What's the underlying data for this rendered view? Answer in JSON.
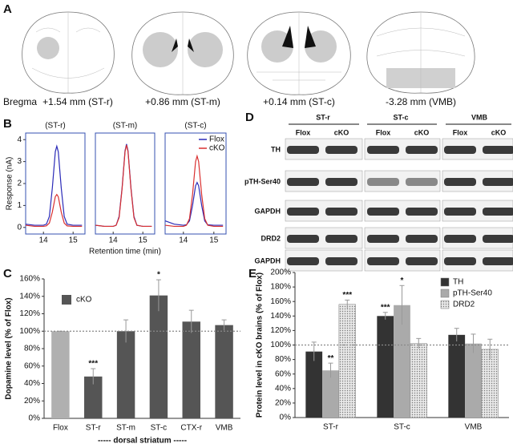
{
  "panel_labels": [
    "A",
    "B",
    "C",
    "D",
    "E"
  ],
  "panel_a": {
    "prefix": "Bregma",
    "sections": [
      "+1.54 mm (ST-r)",
      "+0.86 mm (ST-m)",
      "+0.14 mm (ST-c)",
      "-3.28 mm (VMB)"
    ]
  },
  "panel_d": {
    "groups": [
      "ST-r",
      "ST-c",
      "VMB"
    ],
    "lanes": [
      "Flox",
      "cKO",
      "Flox",
      "cKO",
      "Flox",
      "cKO"
    ],
    "rows": [
      "TH",
      "pTH-Ser40",
      "GAPDH",
      "DRD2",
      "GAPDH"
    ]
  },
  "chart_data": [
    {
      "type": "line",
      "title": "(ST-r)",
      "ylabel": "Response (nA)",
      "xlim": [
        13.4,
        15.4
      ],
      "ylim": [
        -0.3,
        4.3
      ],
      "xticks": [
        14,
        15
      ],
      "yticks": [
        0,
        1,
        2,
        3,
        4
      ],
      "x": [
        13.4,
        13.7,
        14.0,
        14.1,
        14.2,
        14.3,
        14.4,
        14.45,
        14.5,
        14.6,
        14.7,
        14.8,
        15.0,
        15.3
      ],
      "series": [
        {
          "name": "Flox",
          "color": "#2b2bb8",
          "values": [
            0.15,
            0.1,
            0.1,
            0.15,
            0.5,
            1.8,
            3.45,
            3.7,
            3.45,
            1.8,
            0.5,
            0.15,
            0.1,
            0.1
          ]
        },
        {
          "name": "cKO",
          "color": "#d93030",
          "values": [
            0.1,
            0.05,
            0.05,
            0.07,
            0.2,
            0.7,
            1.4,
            1.5,
            1.4,
            0.7,
            0.2,
            0.07,
            0.05,
            0.05
          ]
        }
      ]
    },
    {
      "type": "line",
      "title": "(ST-m)",
      "xlabel": "Retention time (min)",
      "xlim": [
        13.4,
        15.4
      ],
      "ylim": [
        -0.3,
        4.3
      ],
      "xticks": [
        14,
        15
      ],
      "x": [
        13.4,
        13.7,
        14.0,
        14.1,
        14.2,
        14.3,
        14.4,
        14.45,
        14.5,
        14.6,
        14.7,
        14.8,
        15.0,
        15.3
      ],
      "series": [
        {
          "name": "Flox",
          "color": "#2b2bb8",
          "values": [
            0.1,
            0.05,
            0.05,
            0.1,
            0.5,
            1.8,
            3.5,
            3.8,
            3.5,
            1.8,
            0.5,
            0.1,
            0.05,
            0.05
          ]
        },
        {
          "name": "cKO",
          "color": "#d93030",
          "values": [
            0.1,
            0.05,
            0.05,
            0.1,
            0.45,
            1.75,
            3.45,
            3.75,
            3.45,
            1.75,
            0.45,
            0.1,
            0.05,
            0.05
          ]
        }
      ]
    },
    {
      "type": "line",
      "title": "(ST-c)",
      "legend": "upper right",
      "xlim": [
        13.4,
        15.4
      ],
      "ylim": [
        -0.3,
        4.3
      ],
      "xticks": [
        14,
        15
      ],
      "x": [
        13.4,
        13.7,
        14.0,
        14.1,
        14.2,
        14.3,
        14.4,
        14.45,
        14.5,
        14.6,
        14.7,
        14.8,
        15.0,
        15.3
      ],
      "series": [
        {
          "name": "Flox",
          "color": "#2b2bb8",
          "values": [
            0.3,
            0.15,
            0.1,
            0.12,
            0.3,
            1.0,
            1.9,
            2.05,
            1.9,
            1.0,
            0.3,
            0.12,
            0.1,
            0.1
          ]
        },
        {
          "name": "cKO",
          "color": "#d93030",
          "values": [
            0.1,
            0.05,
            0.05,
            0.1,
            0.4,
            1.5,
            3.0,
            3.25,
            3.0,
            1.5,
            0.4,
            0.1,
            0.05,
            0.05
          ]
        }
      ]
    },
    {
      "type": "bar",
      "ylabel": "Dopamine level (% of Flox)",
      "xlabel": "----- dorsal striatum -----",
      "refline": 100,
      "categories": [
        "Flox",
        "ST-r",
        "ST-m",
        "ST-c",
        "CTX-r",
        "VMB"
      ],
      "ylim": [
        0,
        160
      ],
      "yticks": [
        {
          "value": 0,
          "label": "0%"
        },
        {
          "value": 20,
          "label": "20%"
        },
        {
          "value": 40,
          "label": "40%"
        },
        {
          "value": 60,
          "label": "60%"
        },
        {
          "value": 80,
          "label": "80%"
        },
        {
          "value": 100,
          "label": "100%"
        },
        {
          "value": 120,
          "label": "120%"
        },
        {
          "value": 140,
          "label": "140%"
        },
        {
          "value": 160,
          "label": "160%"
        }
      ],
      "series": [
        {
          "name": "cKO",
          "color": "#555555",
          "colors": [
            "#b0b0b0",
            "#555555",
            "#555555",
            "#555555",
            "#555555",
            "#555555"
          ],
          "values": [
            100,
            48,
            100,
            141,
            111,
            107
          ],
          "errors": [
            0,
            9,
            13,
            18,
            13,
            6
          ],
          "annotations": [
            null,
            "***",
            null,
            "*",
            null,
            null
          ]
        }
      ]
    },
    {
      "type": "grouped_bar",
      "ylabel": "Protein level in cKO brains (% of Flox)",
      "refline": 100,
      "legend": "upper right",
      "categories": [
        "ST-r",
        "ST-c",
        "VMB"
      ],
      "ylim": [
        0,
        200
      ],
      "yticks": [
        {
          "value": 0,
          "label": "0%"
        },
        {
          "value": 20,
          "label": "20%"
        },
        {
          "value": 40,
          "label": "40%"
        },
        {
          "value": 60,
          "label": "60%"
        },
        {
          "value": 80,
          "label": "80%"
        },
        {
          "value": 100,
          "label": "100%"
        },
        {
          "value": 120,
          "label": "120%"
        },
        {
          "value": 140,
          "label": "140%"
        },
        {
          "value": 160,
          "label": "160%"
        },
        {
          "value": 180,
          "label": "180%"
        },
        {
          "value": 200,
          "label": "200%"
        }
      ],
      "series": [
        {
          "name": "TH",
          "color": "#333333",
          "values": [
            91,
            140,
            114
          ],
          "errors": [
            13,
            5,
            9
          ],
          "annotations": [
            null,
            "***",
            null
          ]
        },
        {
          "name": "pTH-Ser40",
          "color": "#aaaaaa",
          "values": [
            65,
            155,
            102
          ],
          "errors": [
            10,
            27,
            13
          ],
          "annotations": [
            "**",
            "*",
            null
          ]
        },
        {
          "name": "DRD2",
          "color": "#dddddd",
          "hatch": "dots",
          "values": [
            156,
            102,
            94
          ],
          "errors": [
            6,
            7,
            14
          ],
          "annotations": [
            "***",
            null,
            null
          ]
        }
      ]
    }
  ]
}
